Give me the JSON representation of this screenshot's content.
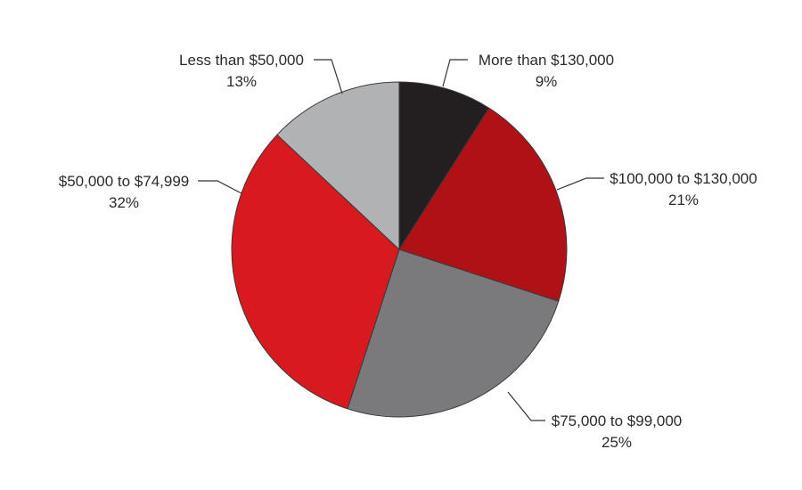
{
  "chart_data": {
    "type": "pie",
    "title": "",
    "start": "12 o'clock",
    "direction": "clockwise",
    "slices": [
      {
        "label": "More than $130,000",
        "value": 9,
        "value_label": "9%",
        "color": "#231f20"
      },
      {
        "label": "$100,000 to $130,000",
        "value": 21,
        "value_label": "21%",
        "color": "#b01116"
      },
      {
        "label": "$75,000 to $99,000",
        "value": 25,
        "value_label": "25%",
        "color": "#7a7a7c"
      },
      {
        "label": "$50,000 to $74,999",
        "value": 32,
        "value_label": "32%",
        "color": "#d71920"
      },
      {
        "label": "Less than $50,000",
        "value": 13,
        "value_label": "13%",
        "color": "#b1b2b4"
      }
    ]
  }
}
